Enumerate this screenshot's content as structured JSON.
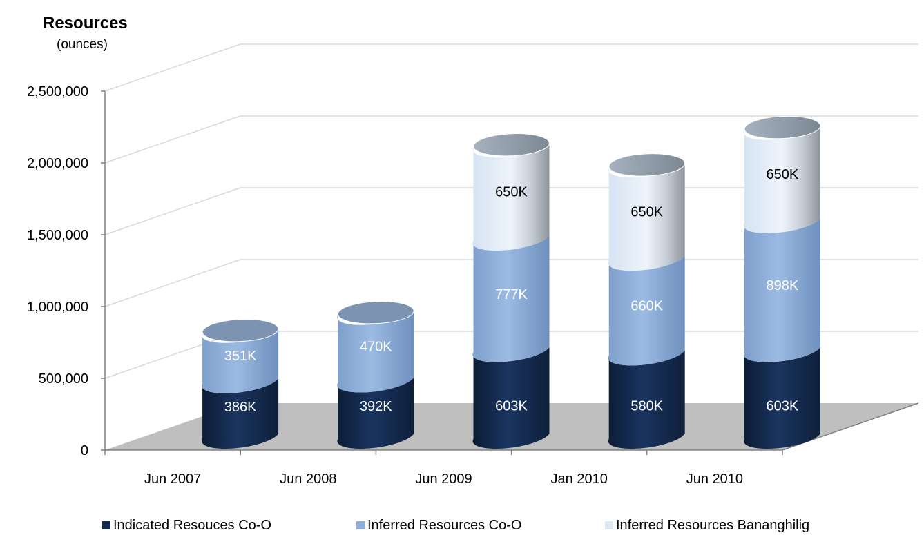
{
  "chart_data": {
    "type": "bar",
    "title": "Resources",
    "subtitle": "(ounces)",
    "categories": [
      "Jun 2007",
      "Jun 2008",
      "Jun 2009",
      "Jan 2010",
      "Jun 2010"
    ],
    "series": [
      {
        "name": "Indicated Resouces Co-O",
        "color": "#13294b",
        "values": [
          386000,
          392000,
          603000,
          580000,
          603000
        ],
        "labels": [
          "386K",
          "392K",
          "603K",
          "580K",
          "603K"
        ],
        "label_color": "#ffffff"
      },
      {
        "name": "Inferred Resources Co-O",
        "color": "#8eafd9",
        "values": [
          351000,
          470000,
          777000,
          660000,
          898000
        ],
        "labels": [
          "351K",
          "470K",
          "777K",
          "660K",
          "898K"
        ],
        "label_color": "#ffffff"
      },
      {
        "name": "Inferred Resources Bananghilig",
        "color": "#dde8f5",
        "values": [
          0,
          0,
          650000,
          650000,
          650000
        ],
        "labels": [
          "",
          "",
          "650K",
          "650K",
          "650K"
        ],
        "label_color": "#000000"
      }
    ],
    "y_ticks": [
      "0",
      "500,000",
      "1,000,000",
      "1,500,000",
      "2,000,000",
      "2,500,000"
    ],
    "ylim": [
      0,
      2500000
    ],
    "stacked": true,
    "grid": true,
    "legend_position": "bottom"
  }
}
